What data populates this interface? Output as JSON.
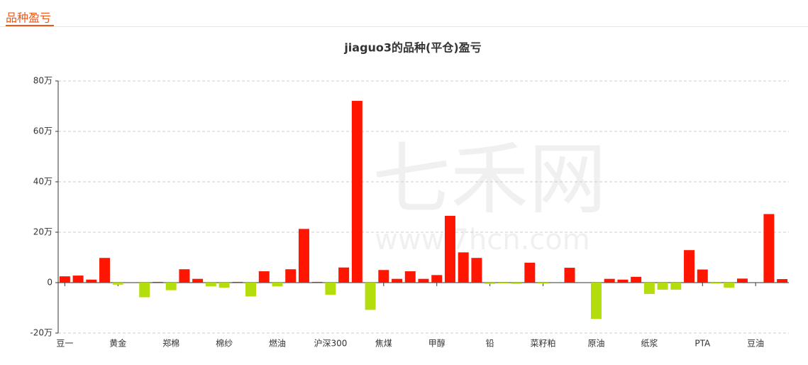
{
  "header": {
    "title": "品种盈亏"
  },
  "chart_data": {
    "type": "bar",
    "title": "jiaguo3的品种(平仓)盈亏",
    "watermark": {
      "brand": "七禾网",
      "url": "www.7hcn.com"
    },
    "categories": [
      "豆一",
      null,
      null,
      null,
      "黄金",
      null,
      null,
      null,
      "郑棉",
      null,
      null,
      null,
      "棉纱",
      null,
      null,
      null,
      "燃油",
      null,
      null,
      null,
      "沪深300",
      null,
      null,
      null,
      "焦煤",
      null,
      null,
      null,
      "甲醇",
      null,
      null,
      null,
      "铅",
      null,
      null,
      null,
      "菜籽粕",
      null,
      null,
      null,
      "原油",
      null,
      null,
      null,
      "纸浆",
      null,
      null,
      null,
      "PTA",
      null,
      null,
      null,
      "豆油",
      null,
      null
    ],
    "values": [
      2.5,
      2.8,
      1.2,
      9.8,
      -0.8,
      0,
      -5.8,
      0.3,
      -3.0,
      5.3,
      1.5,
      -1.5,
      -2.0,
      0.3,
      -5.5,
      4.5,
      -1.5,
      5.3,
      21.3,
      0.3,
      -4.8,
      6.0,
      72.1,
      -10.8,
      5.0,
      1.5,
      4.5,
      1.5,
      3.0,
      26.5,
      12.0,
      9.8,
      -0.5,
      -0.3,
      -0.5,
      7.9,
      -0.4,
      0,
      5.9,
      0,
      -14.4,
      1.5,
      1.2,
      2.3,
      -4.5,
      -2.8,
      -2.8,
      12.9,
      5.2,
      -0.4,
      -2.0,
      1.6,
      0,
      27.2,
      1.4
    ],
    "positive_color": "#ff1500",
    "negative_color": "#b4dd0e",
    "ylim": [
      -20,
      80
    ],
    "yticks": [
      {
        "value": -20,
        "label": "-20万"
      },
      0,
      {
        "value": 20,
        "label": "20万"
      },
      {
        "value": 40,
        "label": "40万"
      },
      {
        "value": 60,
        "label": "60万"
      },
      {
        "value": 80,
        "label": "80万"
      }
    ],
    "grid": true
  }
}
